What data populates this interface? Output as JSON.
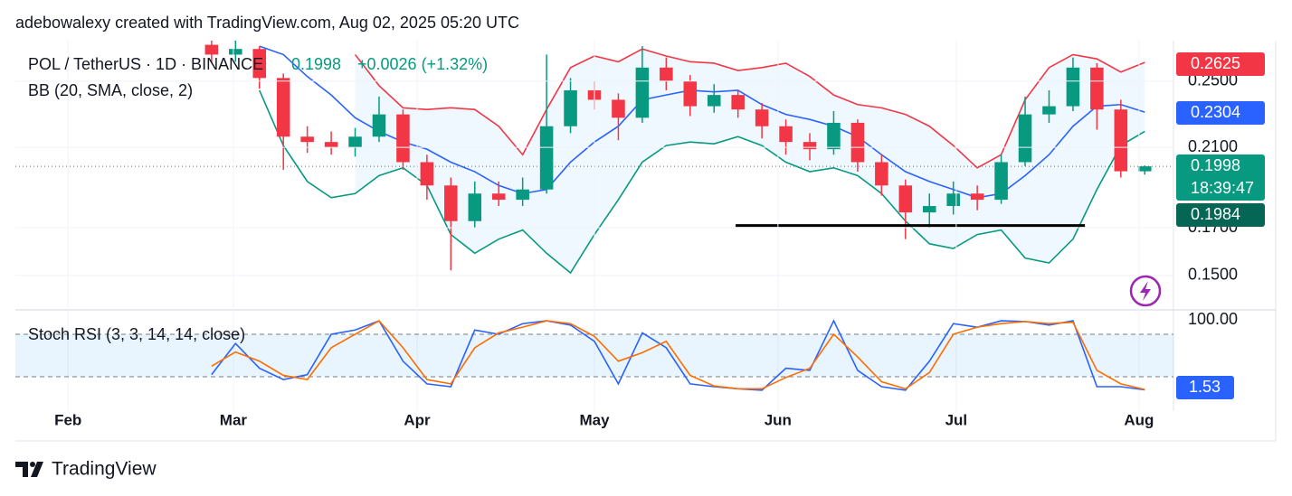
{
  "header": {
    "attribution": "adebowalexy created with TradingView.com, Aug 02, 2025 05:20 UTC"
  },
  "chart_data": [
    {
      "type": "candlestick",
      "title": "POL / TetherUS · 1D · BINANCE",
      "last_price": 0.1998,
      "change_label": "+0.0026 (+1.32%)",
      "indicator": "BB (20, SMA, close, 2)",
      "up_color": "#089981",
      "down_color": "#f23645",
      "fill_color": "rgba(33,150,243,0.07)",
      "log_scale": true,
      "grid": true,
      "ylim": [
        0.137,
        0.278
      ],
      "yticks": [
        {
          "value": 0.15,
          "label": "0.1500"
        },
        {
          "value": 0.17,
          "label": "0.1700"
        },
        {
          "value": 0.21,
          "label": "0.2100"
        },
        {
          "value": 0.25,
          "label": "0.2500"
        }
      ],
      "xlim": [
        -8.2,
        40.2
      ],
      "xticks": [
        {
          "value": -6.0,
          "label": "Feb"
        },
        {
          "value": 0.91,
          "label": "Mar"
        },
        {
          "value": 8.59,
          "label": "Apr"
        },
        {
          "value": 16.0,
          "label": "May"
        },
        {
          "value": 23.67,
          "label": "Jun"
        },
        {
          "value": 31.12,
          "label": "Jul"
        },
        {
          "value": 38.76,
          "label": "Aug"
        }
      ],
      "candles": [
        [
          0.275,
          0.279,
          0.262,
          0.268
        ],
        [
          0.268,
          0.278,
          0.263,
          0.272
        ],
        [
          0.272,
          0.274,
          0.245,
          0.252
        ],
        [
          0.252,
          0.255,
          0.198,
          0.216
        ],
        [
          0.216,
          0.222,
          0.207,
          0.213
        ],
        [
          0.213,
          0.219,
          0.206,
          0.21
        ],
        [
          0.21,
          0.221,
          0.205,
          0.216
        ],
        [
          0.216,
          0.24,
          0.213,
          0.229
        ],
        [
          0.229,
          0.232,
          0.198,
          0.202
        ],
        [
          0.202,
          0.206,
          0.183,
          0.19
        ],
        [
          0.19,
          0.194,
          0.152,
          0.173
        ],
        [
          0.173,
          0.192,
          0.17,
          0.186
        ],
        [
          0.186,
          0.192,
          0.18,
          0.183
        ],
        [
          0.183,
          0.194,
          0.18,
          0.188
        ],
        [
          0.188,
          0.268,
          0.186,
          0.222
        ],
        [
          0.222,
          0.252,
          0.218,
          0.244
        ],
        [
          0.244,
          0.25,
          0.232,
          0.238
        ],
        [
          0.238,
          0.242,
          0.214,
          0.227
        ],
        [
          0.227,
          0.274,
          0.224,
          0.259
        ],
        [
          0.259,
          0.266,
          0.244,
          0.25
        ],
        [
          0.25,
          0.254,
          0.228,
          0.234
        ],
        [
          0.234,
          0.248,
          0.23,
          0.241
        ],
        [
          0.241,
          0.244,
          0.227,
          0.232
        ],
        [
          0.232,
          0.236,
          0.215,
          0.222
        ],
        [
          0.222,
          0.226,
          0.206,
          0.213
        ],
        [
          0.213,
          0.218,
          0.203,
          0.209
        ],
        [
          0.209,
          0.231,
          0.206,
          0.224
        ],
        [
          0.224,
          0.226,
          0.197,
          0.202
        ],
        [
          0.202,
          0.206,
          0.185,
          0.19
        ],
        [
          0.19,
          0.193,
          0.165,
          0.177
        ],
        [
          0.177,
          0.186,
          0.17,
          0.18
        ],
        [
          0.18,
          0.192,
          0.176,
          0.186
        ],
        [
          0.186,
          0.19,
          0.178,
          0.183
        ],
        [
          0.183,
          0.206,
          0.181,
          0.202
        ],
        [
          0.202,
          0.24,
          0.2,
          0.229
        ],
        [
          0.229,
          0.244,
          0.224,
          0.234
        ],
        [
          0.234,
          0.266,
          0.231,
          0.259
        ],
        [
          0.259,
          0.262,
          0.22,
          0.232
        ],
        [
          0.232,
          0.238,
          0.194,
          0.1972
        ],
        [
          0.1972,
          0.2003,
          0.1955,
          0.1998
        ]
      ],
      "bb_upper": {
        "color": "#f23645",
        "values": [
          null,
          null,
          null,
          null,
          null,
          null,
          0.268,
          0.247,
          0.233,
          0.232,
          0.233,
          0.232,
          0.222,
          0.206,
          0.232,
          0.259,
          0.267,
          0.263,
          0.272,
          0.267,
          0.263,
          0.262,
          0.257,
          0.259,
          0.262,
          0.253,
          0.241,
          0.235,
          0.233,
          0.229,
          0.222,
          0.211,
          0.199,
          0.206,
          0.238,
          0.259,
          0.268,
          0.265,
          0.256,
          0.2625
        ]
      },
      "bb_basis": {
        "color": "#2962ff",
        "values": [
          null,
          null,
          0.274,
          0.268,
          0.253,
          0.241,
          0.227,
          0.219,
          0.213,
          0.209,
          0.202,
          0.197,
          0.19,
          0.186,
          0.188,
          0.202,
          0.213,
          0.222,
          0.238,
          0.241,
          0.244,
          0.243,
          0.244,
          0.235,
          0.229,
          0.226,
          0.222,
          0.216,
          0.206,
          0.197,
          0.192,
          0.188,
          0.184,
          0.186,
          0.195,
          0.206,
          0.222,
          0.234,
          0.235,
          0.2304
        ]
      },
      "bb_lower": {
        "color": "#089981",
        "values": [
          null,
          null,
          0.244,
          0.211,
          0.192,
          0.184,
          0.186,
          0.195,
          0.199,
          0.19,
          0.167,
          0.159,
          0.165,
          0.169,
          0.159,
          0.151,
          0.167,
          0.183,
          0.202,
          0.211,
          0.213,
          0.212,
          0.216,
          0.211,
          0.202,
          0.197,
          0.199,
          0.195,
          0.186,
          0.173,
          0.163,
          0.161,
          0.167,
          0.169,
          0.157,
          0.155,
          0.165,
          0.188,
          0.211,
          0.219
        ]
      },
      "hline": {
        "value": 0.171,
        "from": 21.9,
        "to": 36.5,
        "color": "#000000"
      },
      "price_labels": [
        {
          "value": 0.2625,
          "color": "#f23645"
        },
        {
          "value": 0.2304,
          "color": "#2962ff"
        },
        {
          "value": 0.1998,
          "color": "#089981",
          "countdown": "18:39:47"
        },
        {
          "value": 0.1984,
          "color": "#056656"
        }
      ]
    },
    {
      "type": "line",
      "title": "Stoch RSI (3, 3, 14, 14, close)",
      "ylim": [
        0,
        100
      ],
      "yticks": [
        {
          "value": 100,
          "label": "100.00"
        }
      ],
      "bands": [
        20,
        80
      ],
      "k": {
        "color": "#2962ff",
        "values": [
          23,
          67,
          32,
          16,
          23,
          80,
          86,
          99,
          42,
          10,
          6,
          86,
          80,
          95,
          99,
          93,
          70,
          10,
          82,
          61,
          10,
          6,
          3,
          1,
          32,
          29,
          99,
          29,
          6,
          1,
          42,
          95,
          90,
          99,
          98,
          93,
          99,
          6,
          6,
          1.53
        ]
      },
      "d": {
        "color": "#ff6d00",
        "values": [
          35,
          55,
          42,
          22,
          16,
          61,
          80,
          99,
          61,
          16,
          10,
          61,
          82,
          90,
          99,
          95,
          77,
          42,
          54,
          70,
          22,
          7,
          3,
          3,
          19,
          32,
          80,
          48,
          13,
          3,
          26,
          80,
          90,
          95,
          98,
          95,
          97,
          29,
          10,
          2
        ]
      },
      "last_label": {
        "value": 1.53,
        "color": "#2962ff"
      }
    }
  ],
  "footer": {
    "logo_text": "TradingView"
  }
}
